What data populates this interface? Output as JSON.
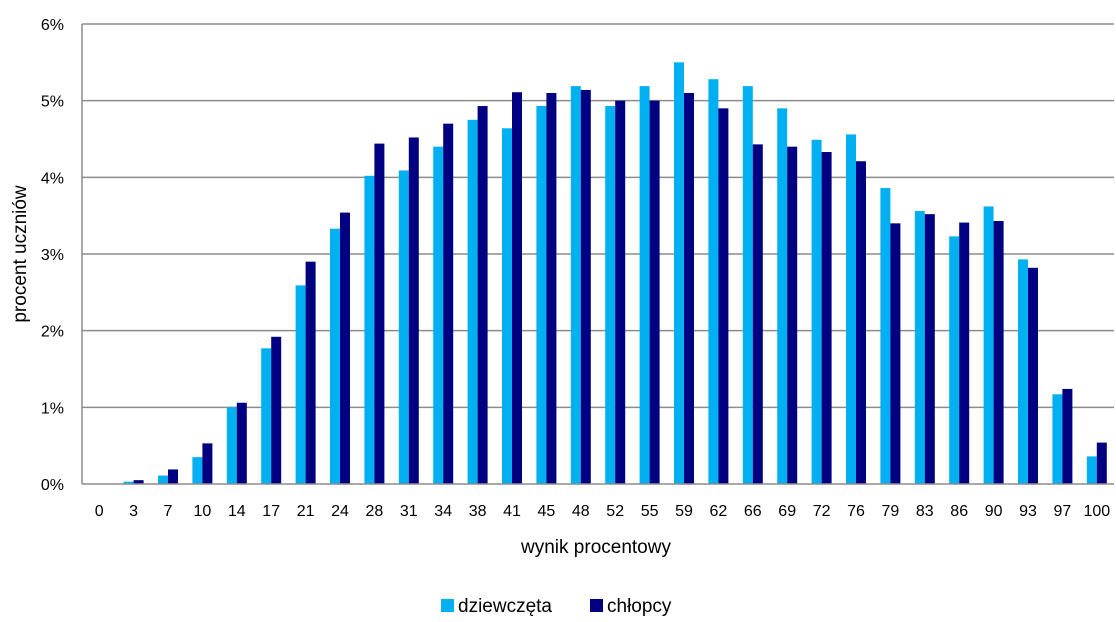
{
  "chart_data": {
    "type": "bar",
    "categories": [
      "0",
      "3",
      "7",
      "10",
      "14",
      "17",
      "21",
      "24",
      "28",
      "31",
      "34",
      "38",
      "41",
      "45",
      "48",
      "52",
      "55",
      "59",
      "62",
      "66",
      "69",
      "72",
      "76",
      "79",
      "83",
      "86",
      "90",
      "93",
      "97",
      "100"
    ],
    "series": [
      {
        "name": "dziewczęta",
        "color": "#00b0f0",
        "values": [
          0,
          0.03,
          0.11,
          0.35,
          1.0,
          1.77,
          2.59,
          3.33,
          4.02,
          4.09,
          4.4,
          4.75,
          4.64,
          4.93,
          5.19,
          4.93,
          5.19,
          5.5,
          5.28,
          5.19,
          4.9,
          4.49,
          4.56,
          3.86,
          3.56,
          3.23,
          3.62,
          2.93,
          1.17,
          0.36
        ]
      },
      {
        "name": "chłopcy",
        "color": "#000080",
        "values": [
          0,
          0.05,
          0.19,
          0.53,
          1.06,
          1.92,
          2.9,
          3.54,
          4.44,
          4.52,
          4.7,
          4.93,
          5.11,
          5.1,
          5.14,
          5.0,
          5.0,
          5.1,
          4.9,
          4.43,
          4.4,
          4.33,
          4.21,
          3.4,
          3.52,
          3.41,
          3.43,
          2.82,
          1.24,
          0.54
        ]
      }
    ],
    "yticks": [
      "0%",
      "1%",
      "2%",
      "3%",
      "4%",
      "5%",
      "6%"
    ],
    "ylim": [
      0,
      6
    ],
    "xlabel": "wynik procentowy",
    "ylabel": "procent uczniów",
    "grid": "horizontal",
    "legend": "bottom-center"
  }
}
